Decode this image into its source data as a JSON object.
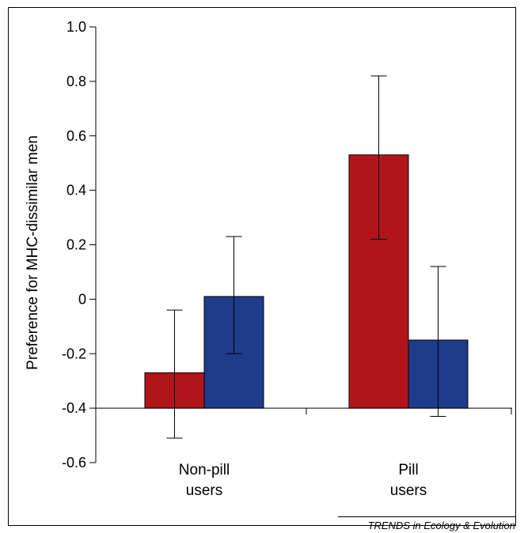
{
  "chart_data": {
    "type": "bar",
    "ylabel": "Preference for MHC-dissimilar men",
    "xlabel": "",
    "ylim": [
      -0.6,
      1.0
    ],
    "yticks": [
      1.0,
      0.8,
      0.6,
      0.4,
      0.2,
      0,
      -0.2,
      -0.4,
      -0.6
    ],
    "ytick_labels": [
      "1.0",
      "0.8",
      "0.6",
      "0.4",
      "0.2",
      "0",
      "-0.2",
      "-0.4",
      "-0.6"
    ],
    "baseline": -0.4,
    "categories": [
      {
        "lines": [
          "Non-pill",
          "users"
        ]
      },
      {
        "lines": [
          "Pill",
          "users"
        ]
      }
    ],
    "series": [
      {
        "color": "#b0151c",
        "values": [
          -0.27,
          0.53
        ],
        "err_low": [
          -0.51,
          0.22
        ],
        "err_high": [
          -0.04,
          0.82
        ]
      },
      {
        "color": "#1f3c8a",
        "values": [
          0.01,
          -0.15
        ],
        "err_low": [
          -0.2,
          -0.43
        ],
        "err_high": [
          0.23,
          0.12
        ]
      }
    ],
    "grid": false,
    "legend": "none"
  },
  "source": "TRENDS in Ecology & Evolution"
}
